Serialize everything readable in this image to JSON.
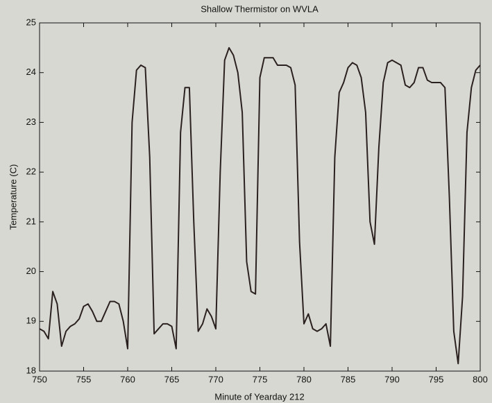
{
  "chart_data": {
    "type": "line",
    "title": "Shallow Thermistor on WVLA",
    "x_label": "Minute of Yearday 212",
    "y_label": "Temperature (C)",
    "x": [
      750,
      750.5,
      751,
      751.5,
      752,
      752.5,
      753,
      753.5,
      754,
      754.5,
      755,
      755.5,
      756,
      756.5,
      757,
      757.5,
      758,
      758.5,
      759,
      759.5,
      760,
      760.5,
      761,
      761.5,
      762,
      762.5,
      763,
      763.5,
      764,
      764.5,
      765,
      765.5,
      766,
      766.5,
      767,
      767.5,
      768,
      768.5,
      769,
      769.5,
      770,
      770.5,
      771,
      771.5,
      772,
      772.5,
      773,
      773.5,
      774,
      774.5,
      775,
      775.5,
      776,
      776.5,
      777,
      778,
      778.5,
      779,
      779.5,
      780,
      780.5,
      781,
      781.5,
      782,
      782.5,
      783,
      783.5,
      784,
      784.5,
      785,
      785.5,
      786,
      786.5,
      787,
      787.5,
      788,
      788.5,
      789,
      789.5,
      790,
      790.5,
      791,
      791.5,
      792,
      792.5,
      793,
      793.5,
      794,
      794.5,
      795,
      795.5,
      796,
      796.5,
      797,
      797.5,
      798,
      798.5,
      799,
      799.5,
      800
    ],
    "series": [
      {
        "name": "Temperature",
        "color": "#2a2020",
        "values": [
          18.85,
          18.8,
          18.65,
          19.6,
          19.35,
          18.5,
          18.8,
          18.9,
          18.95,
          19.05,
          19.3,
          19.35,
          19.2,
          19.0,
          19.0,
          19.2,
          19.4,
          19.4,
          19.35,
          19.0,
          18.45,
          23.0,
          24.05,
          24.15,
          24.1,
          22.3,
          18.75,
          18.85,
          18.95,
          18.95,
          18.9,
          18.45,
          22.8,
          23.7,
          23.7,
          21.0,
          18.8,
          18.95,
          19.25,
          19.1,
          18.85,
          22.0,
          24.25,
          24.5,
          24.35,
          24.0,
          23.2,
          20.2,
          19.6,
          19.55,
          23.9,
          24.3,
          24.3,
          24.3,
          24.15,
          24.15,
          24.1,
          23.75,
          20.6,
          18.95,
          19.15,
          18.85,
          18.8,
          18.85,
          18.95,
          18.5,
          22.3,
          23.6,
          23.8,
          24.1,
          24.2,
          24.15,
          23.9,
          23.2,
          21.0,
          20.55,
          22.5,
          23.8,
          24.2,
          24.25,
          24.2,
          24.15,
          23.75,
          23.7,
          23.8,
          24.1,
          24.1,
          23.85,
          23.8,
          23.8,
          23.8,
          23.7,
          21.5,
          18.8,
          18.15,
          19.5,
          22.8,
          23.7,
          24.05,
          24.15
        ]
      }
    ],
    "xlim": [
      750,
      800
    ],
    "xticks": [
      750,
      755,
      760,
      765,
      770,
      775,
      780,
      785,
      790,
      795,
      800
    ],
    "ylim": [
      18,
      25
    ],
    "yticks": [
      18,
      19,
      20,
      21,
      22,
      23,
      24,
      25
    ]
  }
}
